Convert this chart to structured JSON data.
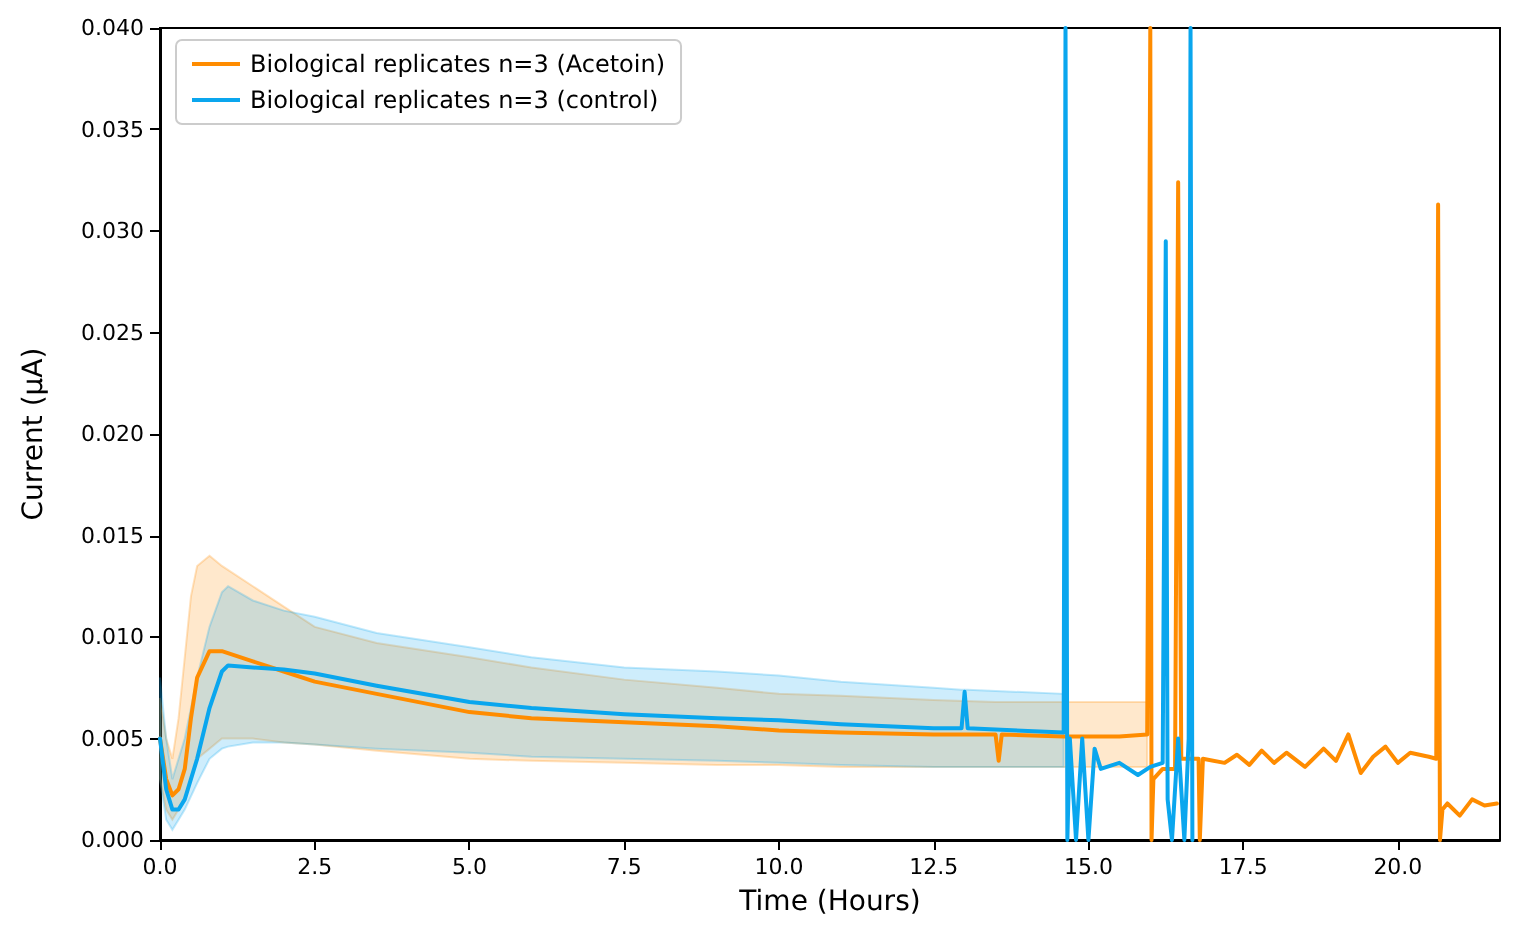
{
  "chart_data": {
    "type": "line",
    "xlabel": "Time (Hours)",
    "ylabel": "Current (µA)",
    "xlim": [
      0,
      21.65
    ],
    "ylim": [
      0,
      0.04
    ],
    "xticks": [
      {
        "value": 0,
        "label": "0.0"
      },
      {
        "value": 2.5,
        "label": "2.5"
      },
      {
        "value": 5,
        "label": "5.0"
      },
      {
        "value": 7.5,
        "label": "7.5"
      },
      {
        "value": 10,
        "label": "10.0"
      },
      {
        "value": 12.5,
        "label": "12.5"
      },
      {
        "value": 15,
        "label": "15.0"
      },
      {
        "value": 17.5,
        "label": "17.5"
      },
      {
        "value": 20,
        "label": "20.0"
      }
    ],
    "yticks": [
      {
        "value": 0,
        "label": "0.000"
      },
      {
        "value": 0.005,
        "label": "0.005"
      },
      {
        "value": 0.01,
        "label": "0.010"
      },
      {
        "value": 0.015,
        "label": "0.015"
      },
      {
        "value": 0.02,
        "label": "0.020"
      },
      {
        "value": 0.025,
        "label": "0.025"
      },
      {
        "value": 0.03,
        "label": "0.030"
      },
      {
        "value": 0.035,
        "label": "0.035"
      },
      {
        "value": 0.04,
        "label": "0.040"
      }
    ],
    "grid": false,
    "legend": "top left",
    "marker": "none",
    "line_style": "solid",
    "series": [
      {
        "name": "Biological replicates n=3 (Acetoin)",
        "color": "#ff8c00",
        "x": [
          0,
          0.1,
          0.2,
          0.3,
          0.4,
          0.5,
          0.6,
          0.8,
          1.0,
          1.5,
          2.0,
          2.5,
          3.5,
          5,
          6,
          7.5,
          9,
          10,
          11,
          12.5,
          13.5,
          13.55,
          13.6,
          14.6,
          15.5,
          15.95,
          16.0,
          16.02,
          16.05,
          16.2,
          16.4,
          16.45,
          16.5,
          16.6,
          16.78,
          16.8,
          16.85,
          17.2,
          17.4,
          17.6,
          17.8,
          18.0,
          18.2,
          18.5,
          18.8,
          19.0,
          19.2,
          19.4,
          19.6,
          19.8,
          20.0,
          20.2,
          20.5,
          20.62,
          20.65,
          20.68,
          20.72,
          20.8,
          21.0,
          21.2,
          21.4,
          21.6
        ],
        "values": [
          0.005,
          0.003,
          0.0022,
          0.0025,
          0.0035,
          0.006,
          0.008,
          0.0093,
          0.0093,
          0.0088,
          0.0083,
          0.0078,
          0.0072,
          0.0063,
          0.006,
          0.0058,
          0.0056,
          0.0054,
          0.0053,
          0.0052,
          0.0052,
          0.0039,
          0.0052,
          0.0051,
          0.0051,
          0.0052,
          0.04,
          0.0,
          0.003,
          0.0035,
          0.0035,
          0.0324,
          0.004,
          0.004,
          0.004,
          0.0,
          0.004,
          0.0038,
          0.0042,
          0.0037,
          0.0044,
          0.0038,
          0.0043,
          0.0036,
          0.0045,
          0.0039,
          0.0052,
          0.0033,
          0.0041,
          0.0046,
          0.0038,
          0.0043,
          0.0041,
          0.004,
          0.0313,
          0.0,
          0.0015,
          0.0018,
          0.0012,
          0.002,
          0.0017,
          0.0018
        ],
        "upper": [
          0.007,
          0.005,
          0.004,
          0.006,
          0.009,
          0.012,
          0.0135,
          0.014,
          0.0135,
          0.0125,
          0.0115,
          0.0105,
          0.0097,
          0.009,
          0.0085,
          0.0079,
          0.0075,
          0.0072,
          0.0071,
          0.0069,
          0.0068,
          0.0068,
          0.0068,
          0.0068,
          0.0068,
          0.0068,
          null,
          null,
          null,
          null,
          null,
          null,
          null,
          null,
          null,
          null,
          null,
          null,
          null,
          null,
          null,
          null,
          null,
          null,
          null,
          null,
          null,
          null,
          null,
          null,
          null,
          null,
          null,
          null,
          null,
          null,
          null,
          null,
          null,
          null,
          null,
          null
        ],
        "lower": [
          0.003,
          0.0015,
          0.001,
          0.0015,
          0.002,
          0.003,
          0.004,
          0.0045,
          0.005,
          0.005,
          0.0048,
          0.0047,
          0.0044,
          0.004,
          0.0039,
          0.0038,
          0.0037,
          0.0037,
          0.0036,
          0.0036,
          0.0036,
          0.0036,
          0.0036,
          0.0036,
          0.0036,
          0.0036,
          null,
          null,
          null,
          null,
          null,
          null,
          null,
          null,
          null,
          null,
          null,
          null,
          null,
          null,
          null,
          null,
          null,
          null,
          null,
          null,
          null,
          null,
          null,
          null,
          null,
          null,
          null,
          null,
          null,
          null,
          null,
          null,
          null,
          null,
          null,
          null
        ]
      },
      {
        "name": "Biological replicates n=3 (control)",
        "color": "#0aa6ee",
        "x": [
          0,
          0.1,
          0.2,
          0.3,
          0.4,
          0.6,
          0.8,
          1.0,
          1.1,
          1.5,
          2.0,
          2.5,
          3.5,
          5,
          6,
          7.5,
          9,
          10,
          11,
          12.5,
          12.95,
          13.0,
          13.05,
          14.6,
          14.63,
          14.66,
          14.7,
          14.8,
          14.9,
          15.0,
          15.1,
          15.2,
          15.5,
          15.8,
          16.0,
          16.2,
          16.25,
          16.28,
          16.35,
          16.45,
          16.55,
          16.62,
          16.65,
          16.68
        ],
        "values": [
          0.005,
          0.0025,
          0.0015,
          0.0015,
          0.002,
          0.004,
          0.0065,
          0.0083,
          0.0086,
          0.0085,
          0.0084,
          0.0082,
          0.0076,
          0.0068,
          0.0065,
          0.0062,
          0.006,
          0.0059,
          0.0057,
          0.0055,
          0.0055,
          0.0073,
          0.0055,
          0.0053,
          0.04,
          0.0,
          0.005,
          0.0,
          0.005,
          0.0,
          0.0045,
          0.0035,
          0.0038,
          0.0032,
          0.0036,
          0.0038,
          0.0295,
          0.002,
          0.0,
          0.005,
          0.0,
          0.005,
          0.04,
          0.0
        ],
        "upper": [
          0.008,
          0.005,
          0.003,
          0.004,
          0.005,
          0.008,
          0.0105,
          0.0122,
          0.0125,
          0.0118,
          0.0113,
          0.011,
          0.0102,
          0.0095,
          0.009,
          0.0085,
          0.0083,
          0.0081,
          0.0078,
          0.0075,
          0.0074,
          0.0074,
          0.0074,
          0.0072,
          null,
          null,
          null,
          null,
          null,
          null,
          null,
          null,
          null,
          null,
          null,
          null,
          null,
          null,
          null,
          null,
          null,
          null,
          null,
          null
        ],
        "lower": [
          0.003,
          0.001,
          0.0005,
          0.001,
          0.0015,
          0.0028,
          0.004,
          0.0045,
          0.0046,
          0.0048,
          0.0048,
          0.0047,
          0.0045,
          0.0043,
          0.0041,
          0.004,
          0.0039,
          0.0038,
          0.0037,
          0.0036,
          0.0036,
          0.0036,
          0.0036,
          0.0036,
          null,
          null,
          null,
          null,
          null,
          null,
          null,
          null,
          null,
          null,
          null,
          null,
          null,
          null,
          null,
          null,
          null,
          null,
          null,
          null
        ]
      }
    ]
  }
}
